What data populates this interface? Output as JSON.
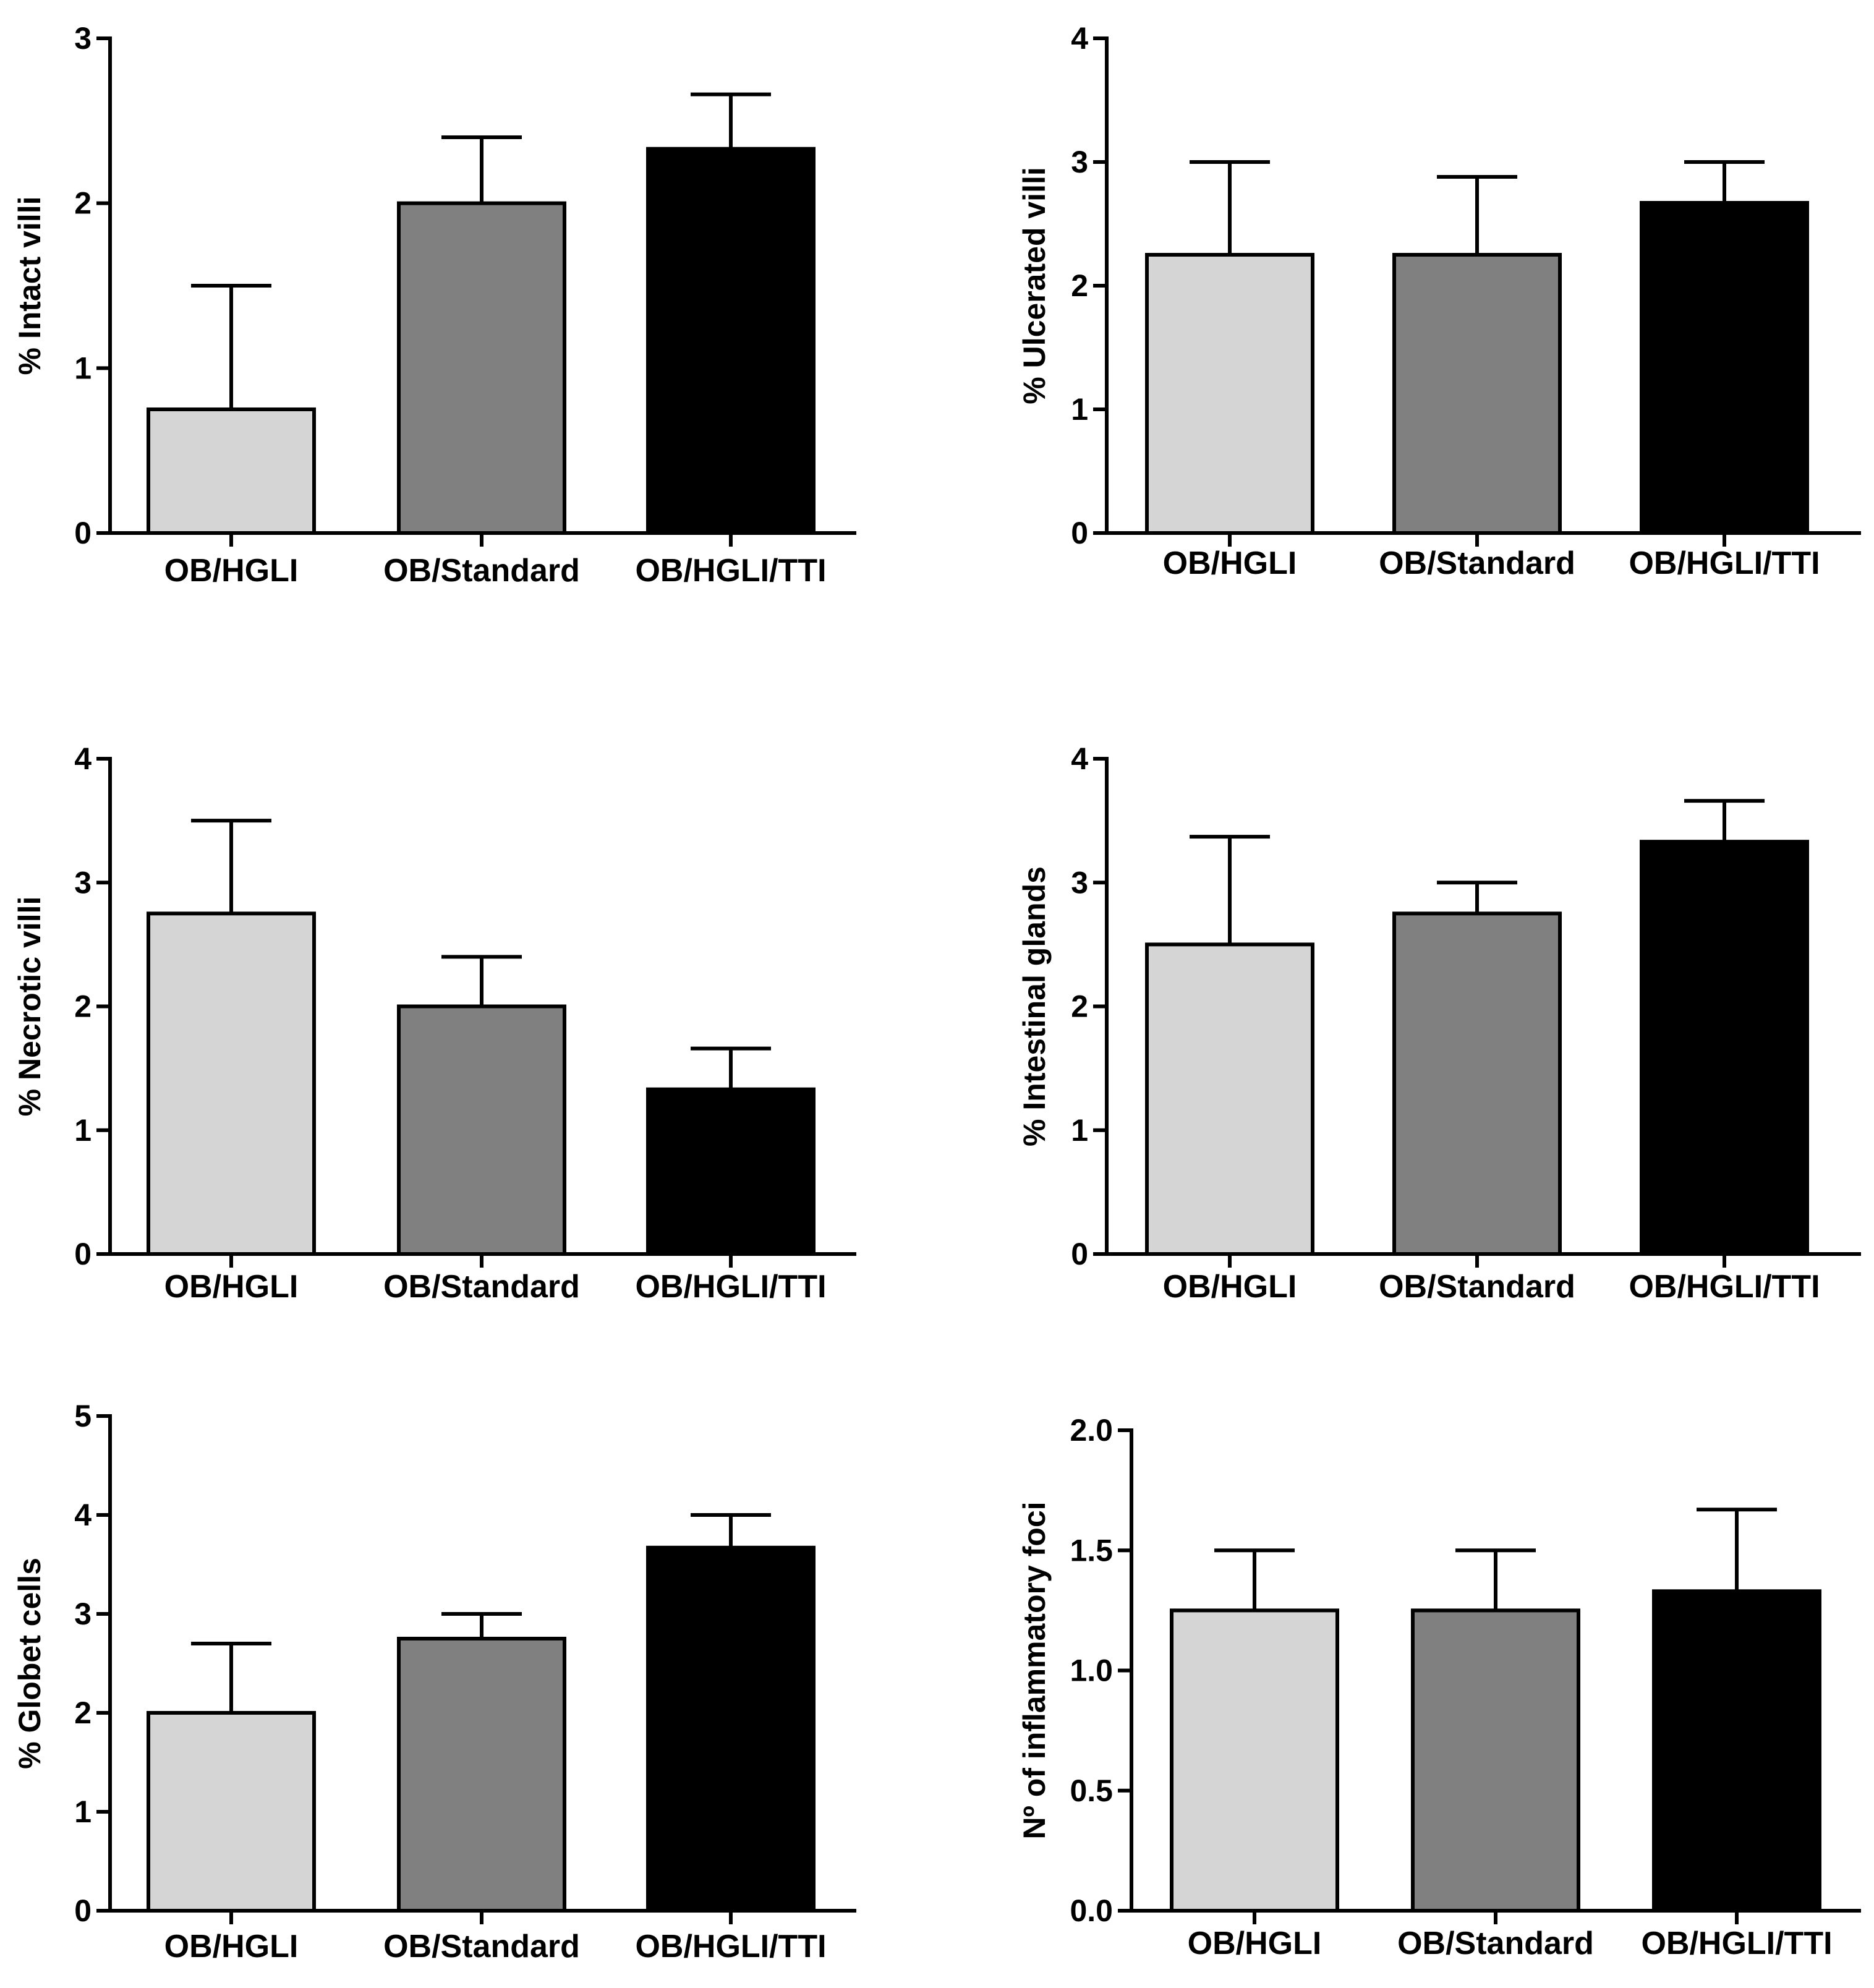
{
  "chart_data": [
    {
      "type": "bar",
      "title": "",
      "xlabel": "",
      "ylabel": "% Intact villi",
      "categories": [
        "OB/HGLI",
        "OB/Standard",
        "OB/HGLI/TTI"
      ],
      "values": [
        0.75,
        2.0,
        2.33
      ],
      "errors": [
        0.75,
        0.4,
        0.33
      ],
      "ylim": [
        0,
        3
      ],
      "yticks": [
        "0",
        "1",
        "2",
        "3"
      ],
      "colors": [
        "#d5d5d5",
        "#808080",
        "#000000"
      ]
    },
    {
      "type": "bar",
      "title": "",
      "xlabel": "",
      "ylabel": "% Ulcerated villi",
      "categories": [
        "OB/HGLI",
        "OB/Standard",
        "OB/HGLI/TTI"
      ],
      "values": [
        2.25,
        2.25,
        2.67
      ],
      "errors": [
        0.75,
        0.63,
        0.33
      ],
      "ylim": [
        0,
        4
      ],
      "yticks": [
        "0",
        "1",
        "2",
        "3",
        "4"
      ],
      "colors": [
        "#d5d5d5",
        "#808080",
        "#000000"
      ]
    },
    {
      "type": "bar",
      "title": "",
      "xlabel": "",
      "ylabel": "% Necrotic villi",
      "categories": [
        "OB/HGLI",
        "OB/Standard",
        "OB/HGLI/TTI"
      ],
      "values": [
        2.75,
        2.0,
        1.33
      ],
      "errors": [
        0.75,
        0.4,
        0.33
      ],
      "ylim": [
        0,
        4
      ],
      "yticks": [
        "0",
        "1",
        "2",
        "3",
        "4"
      ],
      "colors": [
        "#d5d5d5",
        "#808080",
        "#000000"
      ]
    },
    {
      "type": "bar",
      "title": "",
      "xlabel": "",
      "ylabel": "% Intestinal glands",
      "categories": [
        "OB/HGLI",
        "OB/Standard",
        "OB/HGLI/TTI"
      ],
      "values": [
        2.5,
        2.75,
        3.33
      ],
      "errors": [
        0.87,
        0.25,
        0.33
      ],
      "ylim": [
        0,
        4
      ],
      "yticks": [
        "0",
        "1",
        "2",
        "3",
        "4"
      ],
      "colors": [
        "#d5d5d5",
        "#808080",
        "#000000"
      ]
    },
    {
      "type": "bar",
      "title": "",
      "xlabel": "",
      "ylabel": "% Globet cells",
      "categories": [
        "OB/HGLI",
        "OB/Standard",
        "OB/HGLI/TTI"
      ],
      "values": [
        2.0,
        2.75,
        3.67
      ],
      "errors": [
        0.7,
        0.25,
        0.33
      ],
      "ylim": [
        0,
        5
      ],
      "yticks": [
        "0",
        "1",
        "2",
        "3",
        "4",
        "5"
      ],
      "colors": [
        "#d5d5d5",
        "#808080",
        "#000000"
      ]
    },
    {
      "type": "bar",
      "title": "",
      "xlabel": "",
      "ylabel": "Nº of inflammatory foci",
      "categories": [
        "OB/HGLI",
        "OB/Standard",
        "OB/HGLI/TTI"
      ],
      "values": [
        1.25,
        1.25,
        1.33
      ],
      "errors": [
        0.25,
        0.25,
        0.34
      ],
      "ylim": [
        0,
        2.0
      ],
      "yticks": [
        "0.0",
        "0.5",
        "1.0",
        "1.5",
        "2.0"
      ],
      "colors": [
        "#d5d5d5",
        "#808080",
        "#000000"
      ]
    }
  ]
}
